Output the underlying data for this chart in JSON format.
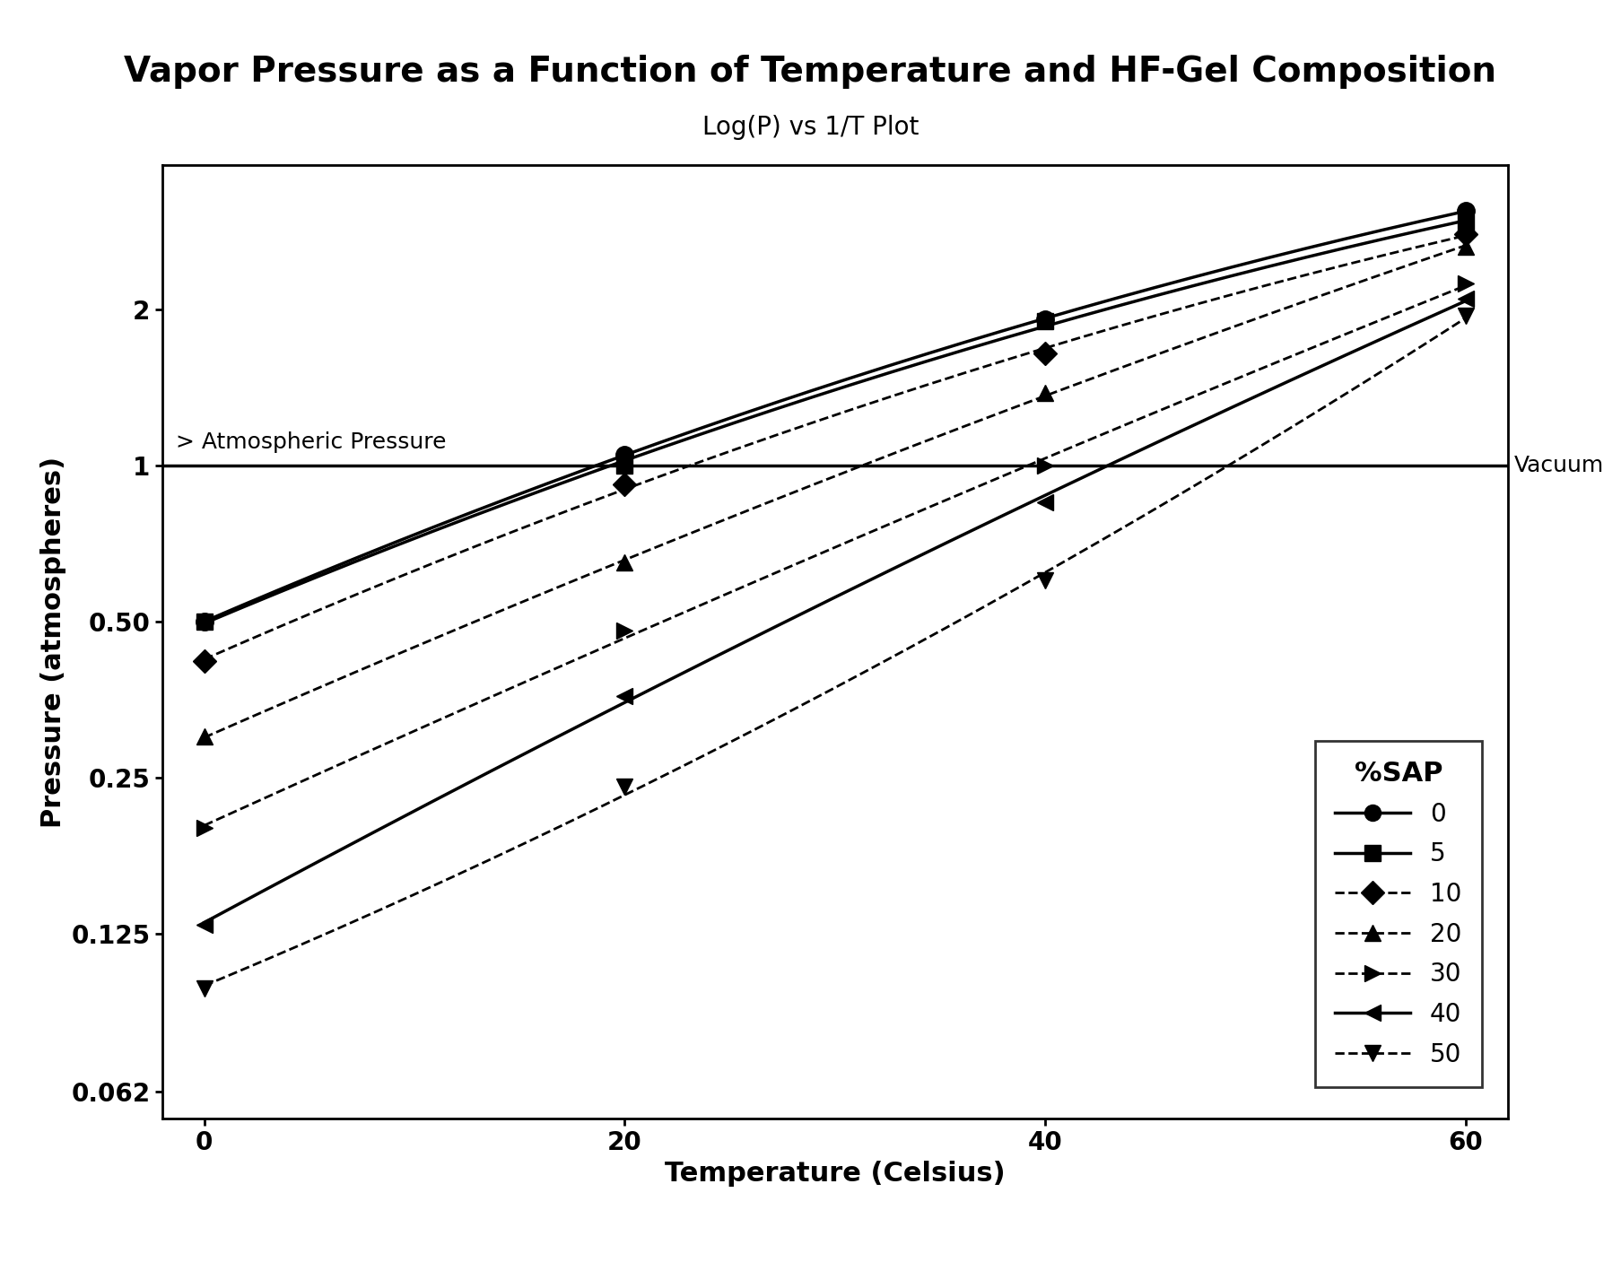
{
  "title": "Vapor Pressure as a Function of Temperature and HF-Gel Composition",
  "subtitle": "Log(P) vs 1/T Plot",
  "xlabel": "Temperature (Celsius)",
  "ylabel": "Pressure (atmospheres)",
  "x_ticks": [
    0,
    20,
    40,
    60
  ],
  "y_ticks": [
    0.062,
    0.125,
    0.25,
    0.5,
    1,
    2
  ],
  "y_tick_labels": [
    "0.062",
    "0.125",
    "0.25",
    "0.50",
    "1",
    "2"
  ],
  "atm_line_y": 1.0,
  "atm_label": "> Atmospheric Pressure",
  "vacuum_label": "Vacuum",
  "series": [
    {
      "label": "0",
      "x": [
        0,
        20,
        40,
        60
      ],
      "y": [
        0.5,
        1.05,
        1.92,
        3.1
      ],
      "linestyle": "-",
      "marker": "o",
      "linewidth": 2.5,
      "markersize": 14
    },
    {
      "label": "5",
      "x": [
        0,
        20,
        40,
        60
      ],
      "y": [
        0.5,
        1.0,
        1.9,
        2.95
      ],
      "linestyle": "-",
      "marker": "s",
      "linewidth": 2.5,
      "markersize": 13
    },
    {
      "label": "10",
      "x": [
        0,
        20,
        40,
        60
      ],
      "y": [
        0.42,
        0.92,
        1.65,
        2.8
      ],
      "linestyle": "--",
      "marker": "D",
      "linewidth": 2.0,
      "markersize": 13
    },
    {
      "label": "20",
      "x": [
        0,
        20,
        40,
        60
      ],
      "y": [
        0.3,
        0.65,
        1.38,
        2.65
      ],
      "linestyle": "--",
      "marker": "^",
      "linewidth": 2.0,
      "markersize": 13
    },
    {
      "label": "30",
      "x": [
        0,
        20,
        40,
        60
      ],
      "y": [
        0.2,
        0.48,
        1.0,
        2.25
      ],
      "linestyle": "--",
      "marker": ">",
      "linewidth": 2.0,
      "markersize": 13
    },
    {
      "label": "40",
      "x": [
        0,
        20,
        40,
        60
      ],
      "y": [
        0.13,
        0.36,
        0.85,
        2.1
      ],
      "linestyle": "-",
      "marker": "<",
      "linewidth": 2.5,
      "markersize": 13
    },
    {
      "label": "50",
      "x": [
        0,
        20,
        40,
        60
      ],
      "y": [
        0.098,
        0.24,
        0.6,
        1.95
      ],
      "linestyle": "--",
      "marker": "v",
      "linewidth": 2.0,
      "markersize": 13
    }
  ],
  "legend_title": "%SAP",
  "xlim": [
    -2,
    62
  ],
  "ylim_log": [
    0.055,
    3.8
  ],
  "background_color": "#ffffff",
  "text_color": "#000000",
  "title_fontsize": 28,
  "subtitle_fontsize": 20,
  "axis_label_fontsize": 22,
  "tick_fontsize": 20,
  "legend_fontsize": 20,
  "legend_title_fontsize": 22,
  "annotation_fontsize": 18
}
